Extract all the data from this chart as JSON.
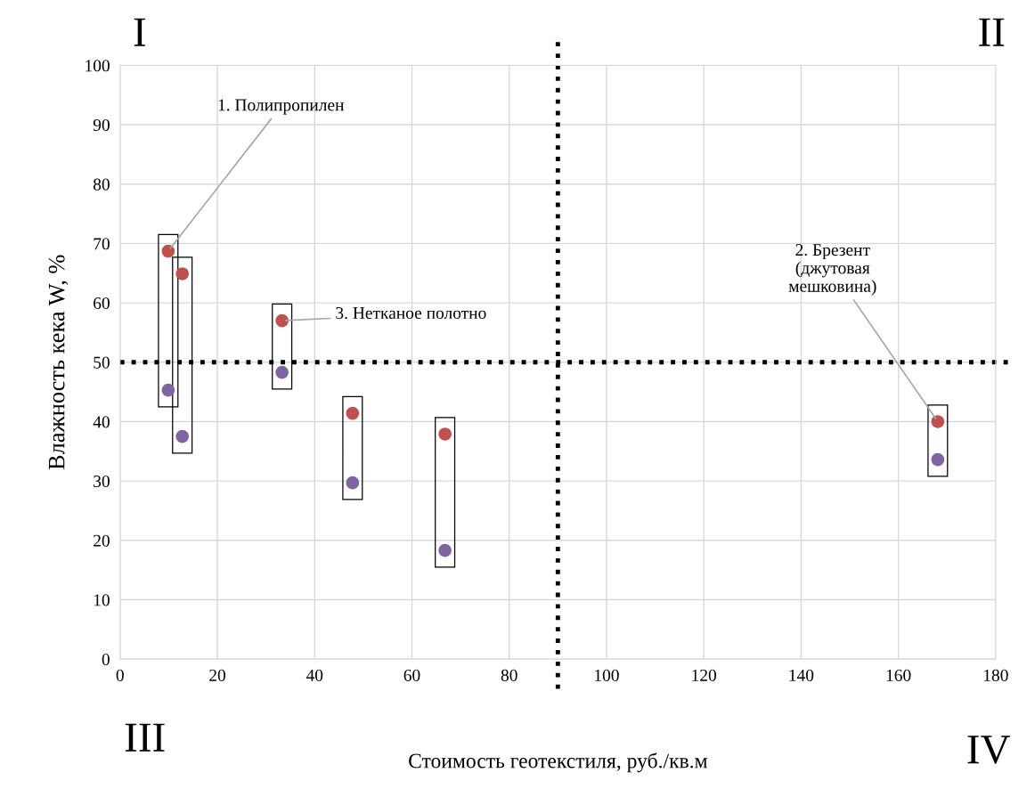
{
  "chart_data": {
    "type": "scatter",
    "xlabel": "Стоимость геотекстиля, руб./кв.м",
    "ylabel": "Влажность кека W, %",
    "x": [
      9.9,
      12.8,
      33.3,
      47.8,
      66.8,
      168.1
    ],
    "series": [
      {
        "color": "#c0504d",
        "values": [
          68.7,
          64.9,
          57.0,
          41.4,
          37.9,
          40.0
        ]
      },
      {
        "color": "#8064a2",
        "values": [
          45.3,
          37.5,
          48.3,
          29.7,
          18.3,
          33.6
        ]
      }
    ],
    "xlim": [
      0,
      180
    ],
    "xticks": [
      0,
      20,
      40,
      60,
      80,
      100,
      120,
      140,
      160,
      180
    ],
    "ylim": [
      0,
      100
    ],
    "yticks": [
      0,
      10,
      20,
      30,
      40,
      50,
      60,
      70,
      80,
      90,
      100
    ],
    "grid": true,
    "marker": "circle",
    "ref_lines": [
      {
        "axis": "x",
        "value": 90,
        "color": "#000000",
        "line_style": "dotted"
      },
      {
        "axis": "y",
        "value": 50,
        "color": "#000000",
        "line_style": "dotted"
      }
    ],
    "annotations": [
      {
        "text": "1. Полипропилен",
        "x": 9.9,
        "y": 68.7
      },
      {
        "text": "3. Нетканое полотно",
        "x": 33.3,
        "y": 57.0
      },
      {
        "text": "2. Брезент\n(джутовая\nмешковина)",
        "x": 168.1,
        "y": 40.0
      },
      "I",
      "II",
      "III",
      "IV"
    ]
  }
}
